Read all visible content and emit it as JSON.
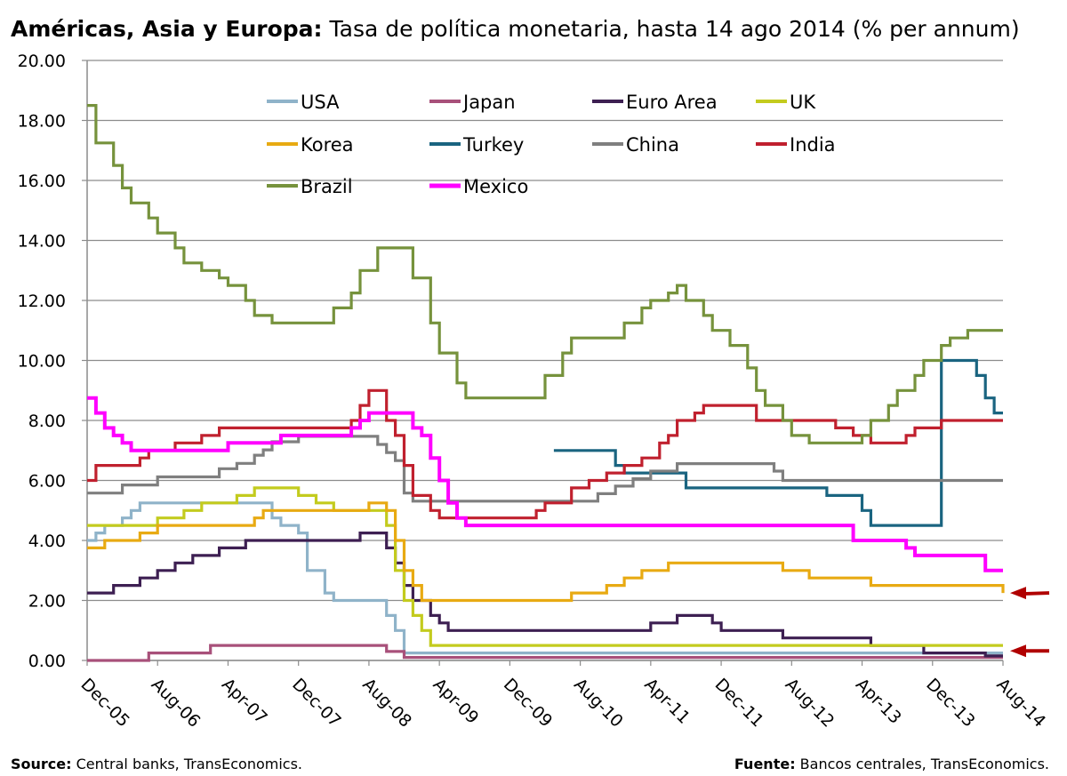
{
  "title": {
    "bold": "Américas, Asia y Europa:",
    "rest": " Tasa de política monetaria, hasta 14 ago 2014 (% per annum)"
  },
  "footer": {
    "left_label": "Source:",
    "left_text": " Central banks, TransEconomics.",
    "right_label": "Fuente:",
    "right_text": " Bancos centrales, TransEconomics."
  },
  "chart_data": {
    "type": "line",
    "title": "Américas, Asia y Europa: Tasa de política monetaria, hasta 14 ago 2014 (% per annum)",
    "ylim": [
      0,
      20
    ],
    "yticks": [
      "0.00",
      "2.00",
      "4.00",
      "6.00",
      "8.00",
      "10.00",
      "12.00",
      "14.00",
      "16.00",
      "18.00",
      "20.00"
    ],
    "xlim": [
      "2005-12",
      "2014-08"
    ],
    "xticks": [
      "Dec-05",
      "Aug-06",
      "Apr-07",
      "Dec-07",
      "Aug-08",
      "Apr-09",
      "Dec-09",
      "Aug-10",
      "Apr-11",
      "Dec-11",
      "Aug-12",
      "Apr-13",
      "Dec-13",
      "Aug-14"
    ],
    "grid": true,
    "legend_position": "top",
    "annotations": [
      "red arrow at 2.25 (Korea)",
      "red arrow at 0.25 (Japan / USA)"
    ],
    "series": [
      {
        "name": "USA",
        "color": "#8fb3c9",
        "points": [
          [
            "2005-12",
            4.0
          ],
          [
            "2006-01",
            4.25
          ],
          [
            "2006-02",
            4.5
          ],
          [
            "2006-04",
            4.75
          ],
          [
            "2006-05",
            5.0
          ],
          [
            "2006-06",
            5.25
          ],
          [
            "2007-09",
            4.75
          ],
          [
            "2007-10",
            4.5
          ],
          [
            "2007-12",
            4.25
          ],
          [
            "2008-01",
            3.0
          ],
          [
            "2008-03",
            2.25
          ],
          [
            "2008-04",
            2.0
          ],
          [
            "2008-10",
            1.5
          ],
          [
            "2008-11",
            1.0
          ],
          [
            "2008-12",
            0.25
          ],
          [
            "2014-08",
            0.25
          ]
        ]
      },
      {
        "name": "Japan",
        "color": "#a8507a",
        "points": [
          [
            "2005-12",
            0.0
          ],
          [
            "2006-07",
            0.25
          ],
          [
            "2007-02",
            0.5
          ],
          [
            "2008-10",
            0.3
          ],
          [
            "2008-12",
            0.1
          ],
          [
            "2014-08",
            0.1
          ]
        ]
      },
      {
        "name": "Euro Area",
        "color": "#3d1f52",
        "points": [
          [
            "2005-12",
            2.25
          ],
          [
            "2006-03",
            2.5
          ],
          [
            "2006-06",
            2.75
          ],
          [
            "2006-08",
            3.0
          ],
          [
            "2006-10",
            3.25
          ],
          [
            "2006-12",
            3.5
          ],
          [
            "2007-03",
            3.75
          ],
          [
            "2007-06",
            4.0
          ],
          [
            "2008-07",
            4.25
          ],
          [
            "2008-10",
            3.75
          ],
          [
            "2008-11",
            3.25
          ],
          [
            "2008-12",
            2.5
          ],
          [
            "2009-01",
            2.0
          ],
          [
            "2009-03",
            1.5
          ],
          [
            "2009-04",
            1.25
          ],
          [
            "2009-05",
            1.0
          ],
          [
            "2011-04",
            1.25
          ],
          [
            "2011-07",
            1.5
          ],
          [
            "2011-11",
            1.25
          ],
          [
            "2011-12",
            1.0
          ],
          [
            "2012-07",
            0.75
          ],
          [
            "2013-05",
            0.5
          ],
          [
            "2013-11",
            0.25
          ],
          [
            "2014-06",
            0.15
          ],
          [
            "2014-08",
            0.15
          ]
        ]
      },
      {
        "name": "UK",
        "color": "#c3cb1e",
        "points": [
          [
            "2005-12",
            4.5
          ],
          [
            "2006-08",
            4.75
          ],
          [
            "2006-11",
            5.0
          ],
          [
            "2007-01",
            5.25
          ],
          [
            "2007-05",
            5.5
          ],
          [
            "2007-07",
            5.75
          ],
          [
            "2007-12",
            5.5
          ],
          [
            "2008-02",
            5.25
          ],
          [
            "2008-04",
            5.0
          ],
          [
            "2008-10",
            4.5
          ],
          [
            "2008-11",
            3.0
          ],
          [
            "2008-12",
            2.0
          ],
          [
            "2009-01",
            1.5
          ],
          [
            "2009-02",
            1.0
          ],
          [
            "2009-03",
            0.5
          ],
          [
            "2014-08",
            0.5
          ]
        ]
      },
      {
        "name": "Korea",
        "color": "#e8aa12",
        "points": [
          [
            "2005-12",
            3.75
          ],
          [
            "2006-02",
            4.0
          ],
          [
            "2006-06",
            4.25
          ],
          [
            "2006-08",
            4.5
          ],
          [
            "2007-07",
            4.75
          ],
          [
            "2007-08",
            5.0
          ],
          [
            "2008-08",
            5.25
          ],
          [
            "2008-10",
            5.0
          ],
          [
            "2008-11",
            4.0
          ],
          [
            "2008-12",
            3.0
          ],
          [
            "2009-01",
            2.5
          ],
          [
            "2009-02",
            2.0
          ],
          [
            "2010-07",
            2.25
          ],
          [
            "2010-11",
            2.5
          ],
          [
            "2011-01",
            2.75
          ],
          [
            "2011-03",
            3.0
          ],
          [
            "2011-06",
            3.25
          ],
          [
            "2012-07",
            3.0
          ],
          [
            "2012-10",
            2.75
          ],
          [
            "2013-05",
            2.5
          ],
          [
            "2014-08",
            2.25
          ]
        ]
      },
      {
        "name": "Turkey",
        "color": "#1a6480",
        "points": [
          [
            "2010-05",
            7.0
          ],
          [
            "2010-12",
            6.5
          ],
          [
            "2011-01",
            6.25
          ],
          [
            "2011-08",
            5.75
          ],
          [
            "2012-12",
            5.5
          ],
          [
            "2013-04",
            5.0
          ],
          [
            "2013-05",
            4.5
          ],
          [
            "2014-01",
            10.0
          ],
          [
            "2014-05",
            9.5
          ],
          [
            "2014-06",
            8.75
          ],
          [
            "2014-07",
            8.25
          ],
          [
            "2014-08",
            8.25
          ]
        ]
      },
      {
        "name": "China",
        "color": "#7f7f7f",
        "points": [
          [
            "2005-12",
            5.58
          ],
          [
            "2006-04",
            5.85
          ],
          [
            "2006-08",
            6.12
          ],
          [
            "2007-03",
            6.39
          ],
          [
            "2007-05",
            6.57
          ],
          [
            "2007-07",
            6.84
          ],
          [
            "2007-08",
            7.02
          ],
          [
            "2007-09",
            7.29
          ],
          [
            "2007-12",
            7.47
          ],
          [
            "2008-09",
            7.2
          ],
          [
            "2008-10",
            6.93
          ],
          [
            "2008-11",
            6.66
          ],
          [
            "2008-12",
            5.58
          ],
          [
            "2009-01",
            5.31
          ],
          [
            "2010-10",
            5.56
          ],
          [
            "2010-12",
            5.81
          ],
          [
            "2011-02",
            6.06
          ],
          [
            "2011-04",
            6.31
          ],
          [
            "2011-07",
            6.56
          ],
          [
            "2012-06",
            6.31
          ],
          [
            "2012-07",
            6.0
          ],
          [
            "2014-08",
            6.0
          ]
        ]
      },
      {
        "name": "India",
        "color": "#c0202e",
        "points": [
          [
            "2005-12",
            6.0
          ],
          [
            "2006-01",
            6.5
          ],
          [
            "2006-06",
            6.75
          ],
          [
            "2006-07",
            7.0
          ],
          [
            "2006-10",
            7.25
          ],
          [
            "2007-01",
            7.5
          ],
          [
            "2007-03",
            7.75
          ],
          [
            "2008-06",
            8.0
          ],
          [
            "2008-07",
            8.5
          ],
          [
            "2008-08",
            9.0
          ],
          [
            "2008-10",
            8.0
          ],
          [
            "2008-11",
            7.5
          ],
          [
            "2008-12",
            6.5
          ],
          [
            "2009-01",
            5.5
          ],
          [
            "2009-03",
            5.0
          ],
          [
            "2009-04",
            4.75
          ],
          [
            "2010-03",
            5.0
          ],
          [
            "2010-04",
            5.25
          ],
          [
            "2010-07",
            5.75
          ],
          [
            "2010-09",
            6.0
          ],
          [
            "2010-11",
            6.25
          ],
          [
            "2011-01",
            6.5
          ],
          [
            "2011-03",
            6.75
          ],
          [
            "2011-05",
            7.25
          ],
          [
            "2011-06",
            7.5
          ],
          [
            "2011-07",
            8.0
          ],
          [
            "2011-09",
            8.25
          ],
          [
            "2011-10",
            8.5
          ],
          [
            "2012-04",
            8.0
          ],
          [
            "2013-01",
            7.75
          ],
          [
            "2013-03",
            7.5
          ],
          [
            "2013-05",
            7.25
          ],
          [
            "2013-09",
            7.5
          ],
          [
            "2013-10",
            7.75
          ],
          [
            "2014-01",
            8.0
          ],
          [
            "2014-08",
            8.0
          ]
        ]
      },
      {
        "name": "Brazil",
        "color": "#76923c",
        "points": [
          [
            "2005-12",
            18.5
          ],
          [
            "2006-01",
            17.25
          ],
          [
            "2006-03",
            16.5
          ],
          [
            "2006-04",
            15.75
          ],
          [
            "2006-05",
            15.25
          ],
          [
            "2006-07",
            14.75
          ],
          [
            "2006-08",
            14.25
          ],
          [
            "2006-10",
            13.75
          ],
          [
            "2006-11",
            13.25
          ],
          [
            "2007-01",
            13.0
          ],
          [
            "2007-03",
            12.75
          ],
          [
            "2007-04",
            12.5
          ],
          [
            "2007-06",
            12.0
          ],
          [
            "2007-07",
            11.5
          ],
          [
            "2007-09",
            11.25
          ],
          [
            "2008-04",
            11.75
          ],
          [
            "2008-06",
            12.25
          ],
          [
            "2008-07",
            13.0
          ],
          [
            "2008-09",
            13.75
          ],
          [
            "2009-01",
            12.75
          ],
          [
            "2009-03",
            11.25
          ],
          [
            "2009-04",
            10.25
          ],
          [
            "2009-06",
            9.25
          ],
          [
            "2009-07",
            8.75
          ],
          [
            "2010-04",
            9.5
          ],
          [
            "2010-06",
            10.25
          ],
          [
            "2010-07",
            10.75
          ],
          [
            "2011-01",
            11.25
          ],
          [
            "2011-03",
            11.75
          ],
          [
            "2011-04",
            12.0
          ],
          [
            "2011-06",
            12.25
          ],
          [
            "2011-07",
            12.5
          ],
          [
            "2011-08",
            12.0
          ],
          [
            "2011-10",
            11.5
          ],
          [
            "2011-11",
            11.0
          ],
          [
            "2012-01",
            10.5
          ],
          [
            "2012-03",
            9.75
          ],
          [
            "2012-04",
            9.0
          ],
          [
            "2012-05",
            8.5
          ],
          [
            "2012-07",
            8.0
          ],
          [
            "2012-08",
            7.5
          ],
          [
            "2012-10",
            7.25
          ],
          [
            "2013-04",
            7.5
          ],
          [
            "2013-05",
            8.0
          ],
          [
            "2013-07",
            8.5
          ],
          [
            "2013-08",
            9.0
          ],
          [
            "2013-10",
            9.5
          ],
          [
            "2013-11",
            10.0
          ],
          [
            "2014-01",
            10.5
          ],
          [
            "2014-02",
            10.75
          ],
          [
            "2014-04",
            11.0
          ],
          [
            "2014-08",
            11.0
          ]
        ]
      },
      {
        "name": "Mexico",
        "color": "#ff00ff",
        "points": [
          [
            "2005-12",
            8.75
          ],
          [
            "2006-01",
            8.25
          ],
          [
            "2006-02",
            7.75
          ],
          [
            "2006-03",
            7.5
          ],
          [
            "2006-04",
            7.25
          ],
          [
            "2006-05",
            7.0
          ],
          [
            "2007-04",
            7.25
          ],
          [
            "2007-10",
            7.5
          ],
          [
            "2008-06",
            7.75
          ],
          [
            "2008-07",
            8.0
          ],
          [
            "2008-08",
            8.25
          ],
          [
            "2009-01",
            7.75
          ],
          [
            "2009-02",
            7.5
          ],
          [
            "2009-03",
            6.75
          ],
          [
            "2009-04",
            6.0
          ],
          [
            "2009-05",
            5.25
          ],
          [
            "2009-06",
            4.75
          ],
          [
            "2009-07",
            4.5
          ],
          [
            "2013-03",
            4.0
          ],
          [
            "2013-09",
            3.75
          ],
          [
            "2013-10",
            3.5
          ],
          [
            "2014-06",
            3.0
          ],
          [
            "2014-08",
            3.0
          ]
        ]
      }
    ]
  }
}
